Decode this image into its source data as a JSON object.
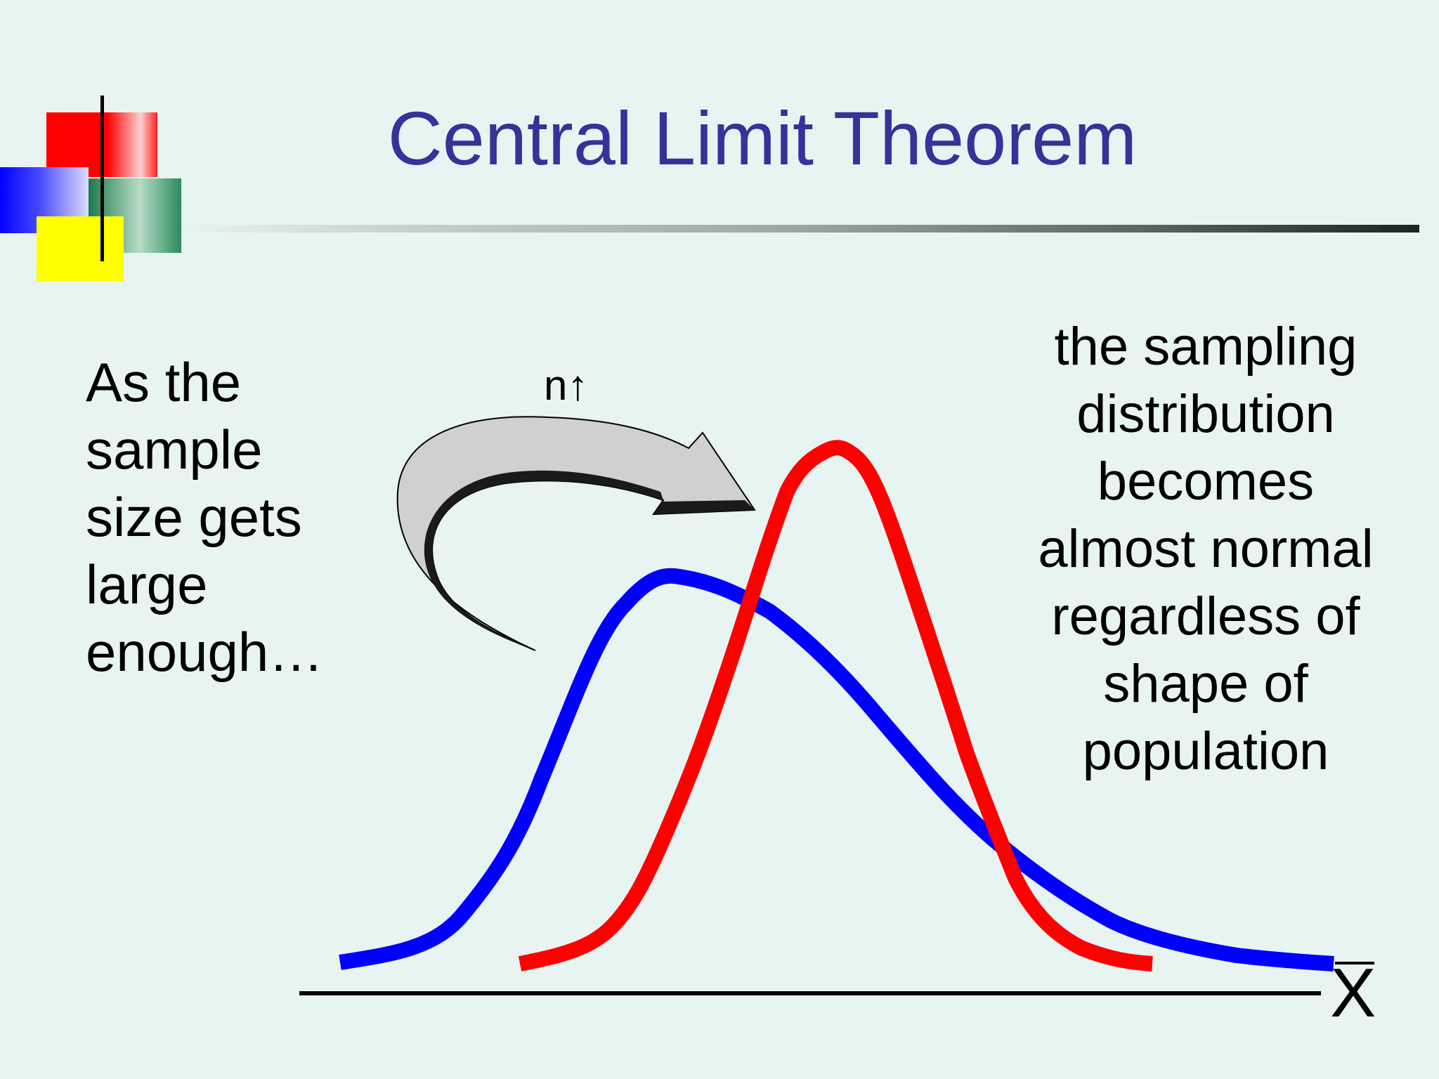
{
  "slide": {
    "title": "Central Limit Theorem",
    "left_text": "As the\nsample\nsize gets\nlarge\nenough…",
    "right_text": "the sampling\ndistribution\nbecomes\nalmost normal\nregardless of\nshape of\npopulation",
    "arrow_label": "n↑",
    "axis_label": "X"
  },
  "colors": {
    "title": "#33339a",
    "background": "#e8f4f2",
    "population_curve": "#0000ff",
    "sampling_curve": "#ff0000",
    "arrow_fill": "#d0d0d0"
  },
  "icons": {
    "arrow": "curved-arrow-icon"
  }
}
